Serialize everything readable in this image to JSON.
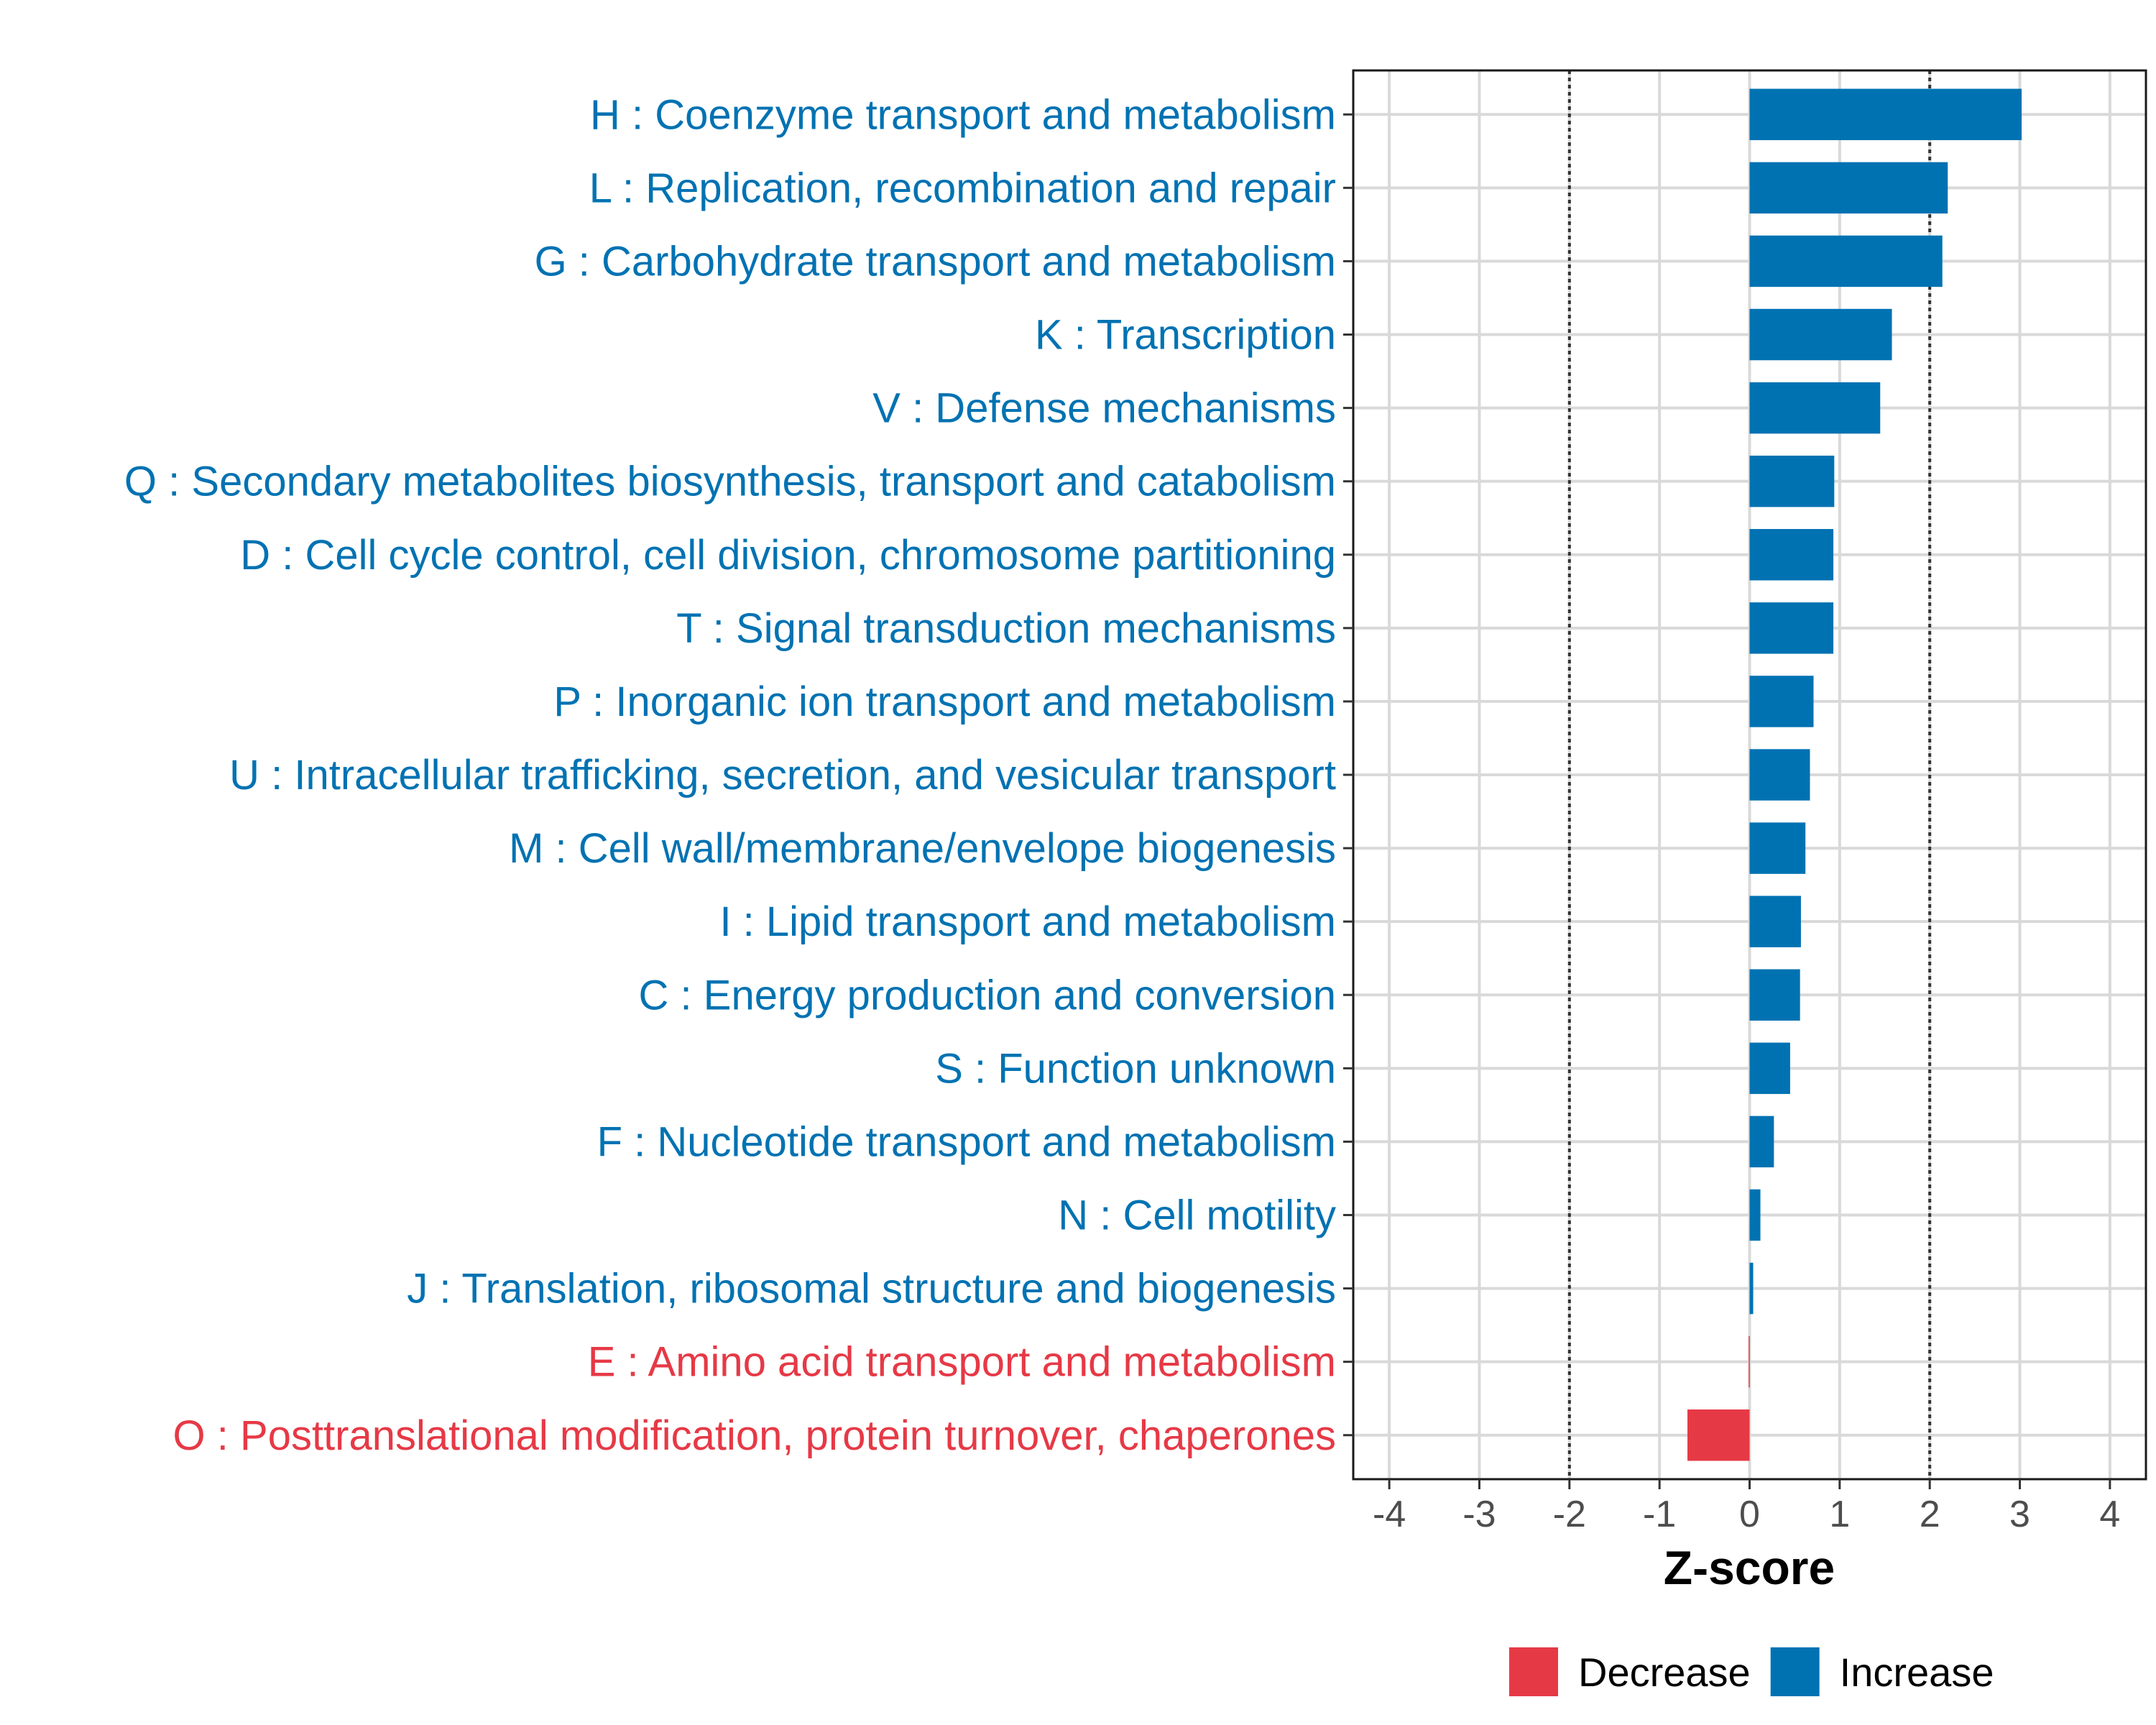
{
  "chart_data": {
    "type": "bar",
    "orientation": "horizontal",
    "xlabel": "Z-score",
    "ylabel": "",
    "xlim": [
      -4.4,
      4.4
    ],
    "xticks": [
      -4,
      -3,
      -2,
      -1,
      0,
      1,
      2,
      3,
      4
    ],
    "threshold_lines": [
      -2,
      2
    ],
    "grid": true,
    "legend_position": "bottom",
    "legend": [
      {
        "label": "Decrease",
        "color": "#E63946"
      },
      {
        "label": "Increase",
        "color": "#0072B2"
      }
    ],
    "categories": [
      "H : Coenzyme transport and metabolism",
      "L : Replication, recombination and repair",
      "G : Carbohydrate transport and metabolism",
      "K : Transcription",
      "V : Defense mechanisms",
      "Q : Secondary metabolites biosynthesis, transport and catabolism",
      "D : Cell cycle control, cell division, chromosome partitioning",
      "T : Signal transduction mechanisms",
      "P : Inorganic ion transport and metabolism",
      "U : Intracellular trafficking, secretion, and vesicular transport",
      "M : Cell wall/membrane/envelope biogenesis",
      "I : Lipid transport and metabolism",
      "C : Energy production and conversion",
      "S : Function unknown",
      "F : Nucleotide transport and metabolism",
      "N : Cell motility",
      "J : Translation, ribosomal structure and biogenesis",
      "E : Amino acid transport and metabolism",
      "O : Posttranslational modification, protein turnover, chaperones"
    ],
    "values": [
      3.02,
      2.2,
      2.14,
      1.58,
      1.45,
      0.94,
      0.93,
      0.93,
      0.71,
      0.67,
      0.62,
      0.57,
      0.56,
      0.45,
      0.27,
      0.12,
      0.04,
      -0.01,
      -0.69
    ],
    "directions": [
      "Increase",
      "Increase",
      "Increase",
      "Increase",
      "Increase",
      "Increase",
      "Increase",
      "Increase",
      "Increase",
      "Increase",
      "Increase",
      "Increase",
      "Increase",
      "Increase",
      "Increase",
      "Increase",
      "Increase",
      "Decrease",
      "Decrease"
    ]
  }
}
